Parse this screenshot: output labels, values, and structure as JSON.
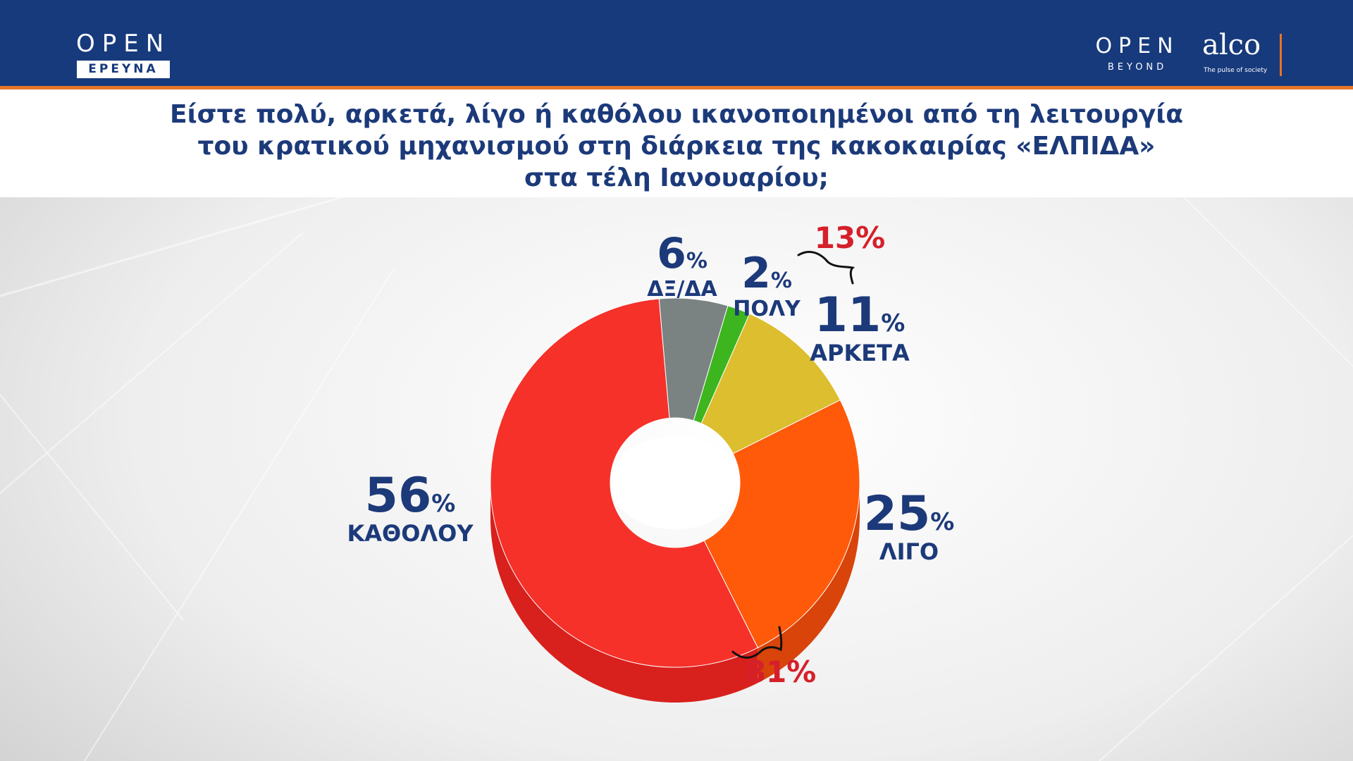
{
  "header": {
    "left_logo_top": "OPEN",
    "left_logo_bottom": "ΕΡΕΥΝΑ",
    "right_logo_top": "OPEN",
    "right_logo_bottom": "BEYOND",
    "alco_logo": "alco",
    "alco_tagline": "The pulse of society"
  },
  "question": {
    "lines": [
      "Είστε πολύ, αρκετά, λίγο ή καθόλου ικανοποιημένοι από τη λειτουργία",
      "του κρατικού μηχανισμού στη διάρκεια της κακοκαιρίας «ΕΛΠΙΔΑ»",
      "στα τέλη Ιανουαρίου;"
    ]
  },
  "colors": {
    "header_bg": "#173a7c",
    "accent": "#e8742a",
    "label_blue": "#1c3a7a",
    "sum_red": "#d5202a"
  },
  "chart_data": {
    "type": "pie",
    "style": "donut-3d",
    "title": "",
    "categories": [
      "ΔΞ/ΔΑ",
      "ΠΟΛΥ",
      "ΑΡΚΕΤΑ",
      "ΛΙΓΟ",
      "ΚΑΘΟΛΟΥ"
    ],
    "values": [
      6,
      2,
      11,
      25,
      56
    ],
    "value_labels": [
      "6",
      "2",
      "11",
      "25",
      "56"
    ],
    "percent_sign": "%",
    "colors": [
      "#7a8282",
      "#3db51f",
      "#dcbe2e",
      "#ff5a0a",
      "#f5312a"
    ],
    "side_colors": [
      "#5a6060",
      "#2a8a14",
      "#b69a1c",
      "#d8440a",
      "#d8201c"
    ],
    "group_totals": [
      {
        "label": "13%",
        "members": [
          "ΠΟΛΥ",
          "ΑΡΚΕΤΑ"
        ]
      },
      {
        "label": "81%",
        "members": [
          "ΛΙΓΟ",
          "ΚΑΘΟΛΟΥ"
        ]
      }
    ]
  }
}
